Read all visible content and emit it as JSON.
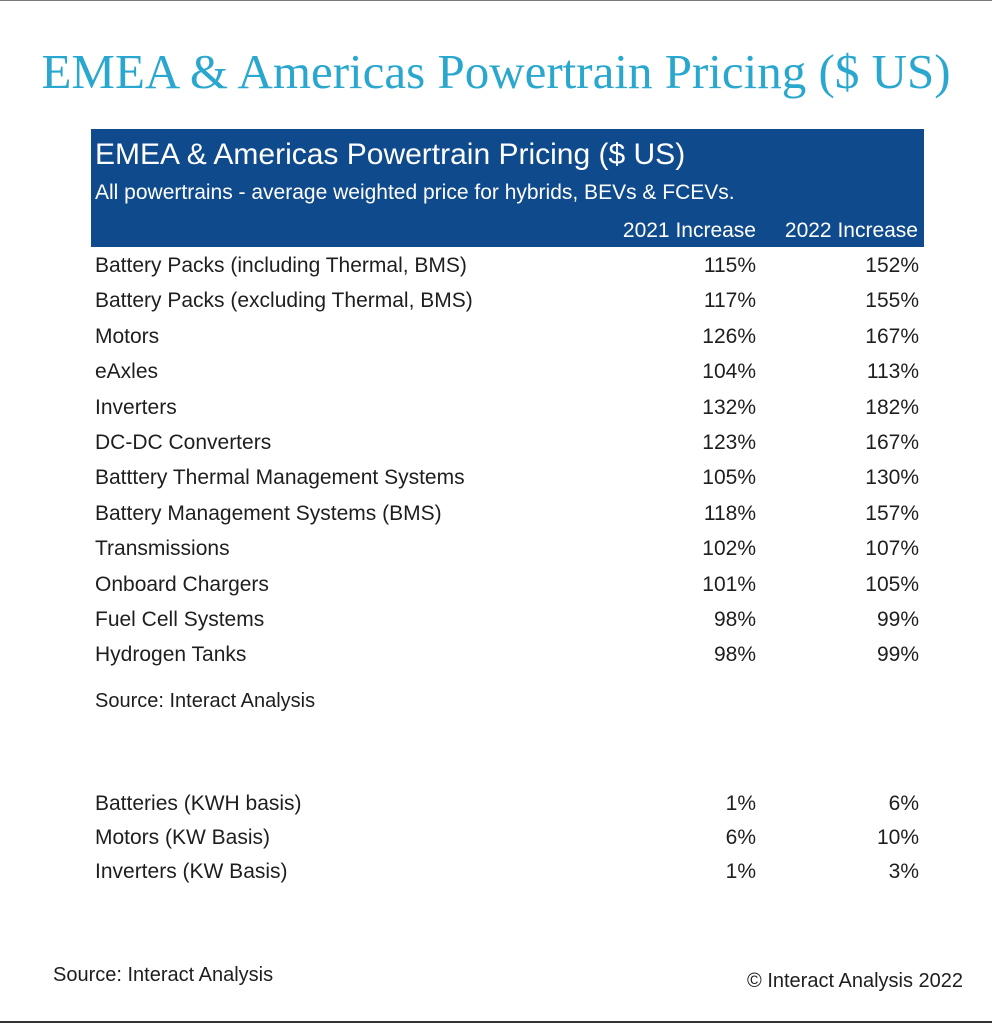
{
  "page_title": "EMEA & Americas Powertrain Pricing ($ US)",
  "chart_data": {
    "type": "table",
    "title": "EMEA & Americas Powertrain Pricing ($ US)",
    "subtitle": "All powertrains - average weighted price for hybrids, BEVs & FCEVs.",
    "columns": [
      "2021 Increase",
      "2022 Increase"
    ],
    "rows": [
      {
        "label": "Battery Packs (including Thermal, BMS)",
        "values": [
          "115%",
          "152%"
        ]
      },
      {
        "label": "Battery Packs (excluding Thermal, BMS)",
        "values": [
          "117%",
          "155%"
        ]
      },
      {
        "label": "Motors",
        "values": [
          "126%",
          "167%"
        ]
      },
      {
        "label": "eAxles",
        "values": [
          "104%",
          "113%"
        ]
      },
      {
        "label": "Inverters",
        "values": [
          "132%",
          "182%"
        ]
      },
      {
        "label": "DC-DC Converters",
        "values": [
          "123%",
          "167%"
        ]
      },
      {
        "label": "Batttery Thermal Management Systems",
        "values": [
          "105%",
          "130%"
        ]
      },
      {
        "label": "Battery Management Systems (BMS)",
        "values": [
          "118%",
          "157%"
        ]
      },
      {
        "label": "Transmissions",
        "values": [
          "102%",
          "107%"
        ]
      },
      {
        "label": "Onboard Chargers",
        "values": [
          "101%",
          "105%"
        ]
      },
      {
        "label": "Fuel Cell Systems",
        "values": [
          "98%",
          "99%"
        ]
      },
      {
        "label": "Hydrogen Tanks",
        "values": [
          "98%",
          "99%"
        ]
      }
    ],
    "source": "Source: Interact Analysis",
    "basis_rows": [
      {
        "label": "Batteries (KWH basis)",
        "values": [
          "1%",
          "6%"
        ]
      },
      {
        "label": "Motors (KW Basis)",
        "values": [
          "6%",
          "10%"
        ]
      },
      {
        "label": "Inverters (KW Basis)",
        "values": [
          "1%",
          "3%"
        ]
      }
    ]
  },
  "footer": {
    "source": "Source: Interact Analysis",
    "copyright": "© Interact Analysis 2022"
  },
  "colors": {
    "title": "#2aa7cf",
    "header_bg": "#0f4a8c",
    "header_text": "#ffffff",
    "body_text": "#1e1e1e"
  }
}
